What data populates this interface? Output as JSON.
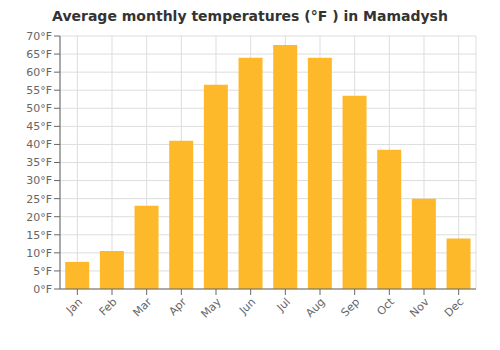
{
  "chart_data": {
    "type": "bar",
    "title": "Average monthly temperatures (°F ) in Mamadysh",
    "categories": [
      "Jan",
      "Feb",
      "Mar",
      "Apr",
      "May",
      "Jun",
      "Jul",
      "Aug",
      "Sep",
      "Oct",
      "Nov",
      "Dec"
    ],
    "values": [
      7.5,
      10.5,
      23.0,
      41.0,
      56.5,
      64.0,
      67.5,
      64.0,
      53.5,
      38.5,
      25.0,
      14.0
    ],
    "color": "#FDB92A",
    "ylim": [
      0,
      70
    ],
    "yticks": [
      {
        "value": 0,
        "label": "0°F"
      },
      {
        "value": 5,
        "label": "5°F"
      },
      {
        "value": 10,
        "label": "10°F"
      },
      {
        "value": 15,
        "label": "15°F"
      },
      {
        "value": 20,
        "label": "20°F"
      },
      {
        "value": 25,
        "label": "25°F"
      },
      {
        "value": 30,
        "label": "30°F"
      },
      {
        "value": 35,
        "label": "35°F"
      },
      {
        "value": 40,
        "label": "40°F"
      },
      {
        "value": 45,
        "label": "45°F"
      },
      {
        "value": 50,
        "label": "50°F"
      },
      {
        "value": 55,
        "label": "55°F"
      },
      {
        "value": 60,
        "label": "60°F"
      },
      {
        "value": 65,
        "label": "65°F"
      },
      {
        "value": 70,
        "label": "70°F"
      }
    ],
    "grid": true
  }
}
